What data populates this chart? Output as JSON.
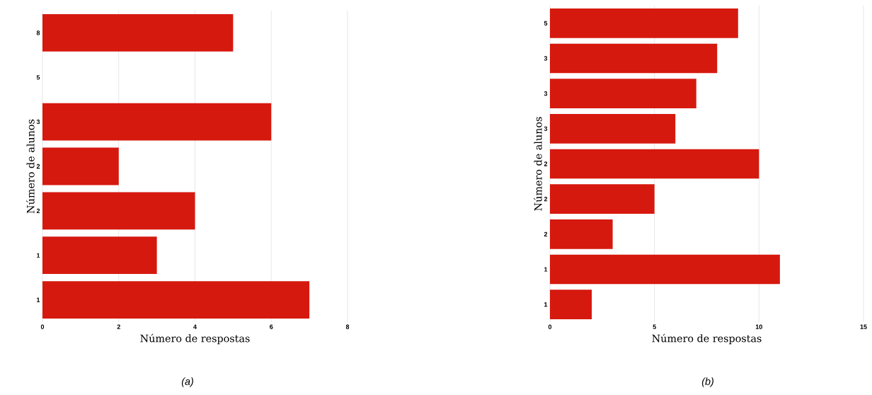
{
  "chart_data": [
    {
      "type": "bar",
      "orientation": "horizontal",
      "categories": [
        "8",
        "5",
        "3",
        "2",
        "2",
        "1",
        "1"
      ],
      "values": [
        5,
        null,
        6,
        2,
        4,
        3,
        7
      ],
      "color": "#d6190f",
      "xlim": [
        0,
        8
      ],
      "xticks": [
        0,
        2,
        4,
        6,
        8
      ],
      "xlabel": "Número de respostas",
      "ylabel": "Número de alunos",
      "grid": "x",
      "annotations": [
        "(a)"
      ]
    },
    {
      "type": "bar",
      "orientation": "horizontal",
      "categories": [
        "5",
        "3",
        "3",
        "3",
        "2",
        "2",
        "2",
        "1",
        "1"
      ],
      "values": [
        9,
        8,
        7,
        6,
        10,
        5,
        3,
        11,
        2
      ],
      "color": "#d6190f",
      "xlim": [
        0,
        15
      ],
      "xticks": [
        0,
        5,
        10,
        15
      ],
      "xlabel": "Número de respostas",
      "ylabel": "Número de alunos",
      "grid": "x",
      "annotations": [
        "(b)"
      ]
    }
  ]
}
